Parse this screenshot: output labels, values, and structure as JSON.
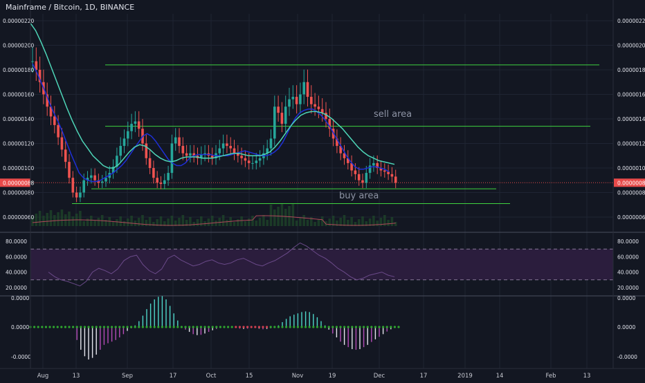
{
  "header": {
    "symbol_line": "Mainframe / Bitcoin, 1D, BINANCE"
  },
  "colors": {
    "background": "#131722",
    "grid": "#1f2433",
    "pane_divider": "#4a4f5e",
    "up_candle": "#26a69a",
    "down_candle": "#ef5350",
    "ema_fast": "#1e2fd6",
    "ema_slow": "#4ed6b8",
    "levels": "#3fd43f",
    "last_price_badge": "#e84a4a",
    "rsi_line": "#6b4a8a",
    "rsi_band": "#2b1d3d",
    "volume": "#1f4a2a",
    "volume_ma": "#b04a5a",
    "macd_pos": "#4ed6c8",
    "macd_neg_light": "#e6e6ee",
    "macd_neg_magenta": "#b54bb8",
    "macd_zero_dots": "#2fa62f",
    "axis_text": "#e1e3eb",
    "annotation_text": "#8e94a5"
  },
  "chart_data": {
    "type": "candlestick",
    "title": "Mainframe / Bitcoin, 1D, BINANCE",
    "x_tick_labels": [
      "Aug",
      "13",
      "Sep",
      "17",
      "Oct",
      "15",
      "Nov",
      "19",
      "Dec",
      "17",
      "2019",
      "14",
      "Feb",
      "13"
    ],
    "price_axis": {
      "ylim": [
        5e-07,
        2.3e-07
      ],
      "tick_labels": [
        "0.00000220",
        "0.00000200",
        "0.00000180",
        "0.00000160",
        "0.00000140",
        "0.00000120",
        "0.00000100",
        "0.00000080",
        "0.00000060"
      ],
      "last_price": "0.00000088"
    },
    "candles_close": [
      1.87e-06,
      1.8e-06,
      1.7e-06,
      1.6e-06,
      1.5e-06,
      1.42e-06,
      1.35e-06,
      1.25e-06,
      1.15e-06,
      1.05e-06,
      9.2e-07,
      8e-07,
      7.6e-07,
      8e-07,
      9e-07,
      9.2e-07,
      9.4e-07,
      9e-07,
      8.8e-07,
      8.9e-07,
      9.2e-07,
      9.6e-07,
      1.01e-06,
      1.1e-06,
      1.18e-06,
      1.24e-06,
      1.3e-06,
      1.36e-06,
      1.38e-06,
      1.32e-06,
      1.2e-06,
      1.08e-06,
      1e-06,
      9.2e-07,
      8.8e-07,
      8.7e-07,
      9e-07,
      9.6e-07,
      1.2e-06,
      1.25e-06,
      1.18e-06,
      1.12e-06,
      1.1e-06,
      1.12e-06,
      1.1e-06,
      1.08e-06,
      1.11e-06,
      1.12e-06,
      1.1e-06,
      1.08e-06,
      1.12e-06,
      1.16e-06,
      1.2e-06,
      1.18e-06,
      1.16e-06,
      1.12e-06,
      1.1e-06,
      1.08e-06,
      1.06e-06,
      1.04e-06,
      1.04e-06,
      1.06e-06,
      1.08e-06,
      1.12e-06,
      1.16e-06,
      1.24e-06,
      1.5e-06,
      1.45e-06,
      1.36e-06,
      1.5e-06,
      1.56e-06,
      1.58e-06,
      1.52e-06,
      1.6e-06,
      1.7e-06,
      1.58e-06,
      1.52e-06,
      1.5e-06,
      1.48e-06,
      1.45e-06,
      1.4e-06,
      1.32e-06,
      1.24e-06,
      1.18e-06,
      1.12e-06,
      1.08e-06,
      1.04e-06,
      9.8e-07,
      9.5e-07,
      9e-07,
      8.8e-07,
      9.6e-07,
      1.02e-06,
      1.04e-06,
      1e-06,
      9.8e-07,
      9.7e-07,
      9.5e-07,
      9.3e-07,
      8.8e-07
    ],
    "ema_fast": [
      1.85e-06,
      1.78e-06,
      1.7e-06,
      1.62e-06,
      1.53e-06,
      1.45e-06,
      1.38e-06,
      1.3e-06,
      1.21e-06,
      1.12e-06,
      1.04e-06,
      9.6e-07,
      9.2e-07,
      9e-07,
      8.9e-07,
      8.9e-07,
      9e-07,
      9.2e-07,
      9.4e-07,
      9.6e-07,
      9.9e-07,
      1.02e-06,
      1.06e-06,
      1.11e-06,
      1.16e-06,
      1.21e-06,
      1.26e-06,
      1.28e-06,
      1.26e-06,
      1.22e-06,
      1.17e-06,
      1.12e-06,
      1.07e-06,
      1.04e-06,
      1.02e-06,
      1.02e-06,
      1.04e-06,
      1.08e-06,
      1.1e-06,
      1.11e-06,
      1.11e-06,
      1.11e-06,
      1.11e-06,
      1.1e-06,
      1.1e-06,
      1.1e-06,
      1.1e-06,
      1.11e-06,
      1.12e-06,
      1.13e-06,
      1.14e-06,
      1.13e-06,
      1.12e-06,
      1.11e-06,
      1.1e-06,
      1.1e-06,
      1.11e-06,
      1.13e-06,
      1.16e-06,
      1.21e-06,
      1.28e-06,
      1.35e-06,
      1.41e-06,
      1.45e-06,
      1.47e-06,
      1.48e-06,
      1.48e-06,
      1.46e-06,
      1.43e-06,
      1.39e-06,
      1.34e-06,
      1.28e-06,
      1.22e-06,
      1.16e-06,
      1.1e-06,
      1.05e-06,
      1.01e-06,
      9.9e-07,
      9.9e-07,
      1e-06,
      1.01e-06,
      1.01e-06,
      1e-06,
      9.9e-07,
      9.7e-07
    ],
    "ema_slow": [
      2.18e-06,
      2.12e-06,
      2.03e-06,
      1.93e-06,
      1.82e-06,
      1.71e-06,
      1.6e-06,
      1.49e-06,
      1.39e-06,
      1.3e-06,
      1.22e-06,
      1.16e-06,
      1.1e-06,
      1.06e-06,
      1.02e-06,
      1e-06,
      1e-06,
      1.03e-06,
      1.08e-06,
      1.13e-06,
      1.17e-06,
      1.19e-06,
      1.18e-06,
      1.15e-06,
      1.11e-06,
      1.08e-06,
      1.06e-06,
      1.05e-06,
      1.06e-06,
      1.08e-06,
      1.09e-06,
      1.09e-06,
      1.09e-06,
      1.08e-06,
      1.08e-06,
      1.08e-06,
      1.09e-06,
      1.1e-06,
      1.11e-06,
      1.12e-06,
      1.12e-06,
      1.11e-06,
      1.1e-06,
      1.1e-06,
      1.1e-06,
      1.11e-06,
      1.13e-06,
      1.17e-06,
      1.22e-06,
      1.28e-06,
      1.34e-06,
      1.39e-06,
      1.43e-06,
      1.45e-06,
      1.46e-06,
      1.46e-06,
      1.45e-06,
      1.43e-06,
      1.4e-06,
      1.36e-06,
      1.32e-06,
      1.27e-06,
      1.22e-06,
      1.17e-06,
      1.13e-06,
      1.1e-06,
      1.08e-06,
      1.06e-06,
      1.05e-06,
      1.04e-06,
      1.03e-06
    ],
    "levels": [
      {
        "name": "resistance-top",
        "value": 1.84e-06
      },
      {
        "name": "resistance-mid",
        "value": 1.34e-06
      },
      {
        "name": "support-upper",
        "value": 8.3e-07
      },
      {
        "name": "support-lower",
        "value": 7.1e-07
      }
    ],
    "annotations": [
      {
        "text": "sell area"
      },
      {
        "text": "buy area"
      }
    ],
    "rsi": {
      "ylim": [
        10,
        90
      ],
      "tick_labels": [
        "80.0000",
        "60.0000",
        "40.0000",
        "20.0000"
      ],
      "band": [
        30,
        70
      ],
      "values": [
        40,
        34,
        30,
        28,
        25,
        22,
        28,
        40,
        45,
        42,
        38,
        44,
        55,
        60,
        62,
        50,
        42,
        38,
        44,
        58,
        62,
        56,
        52,
        48,
        50,
        54,
        56,
        52,
        50,
        52,
        56,
        58,
        54,
        50,
        48,
        52,
        55,
        60,
        65,
        72,
        78,
        74,
        68,
        62,
        58,
        52,
        45,
        40,
        34,
        30,
        32,
        36,
        38,
        40,
        36,
        34
      ]
    },
    "macd": {
      "tick_labels": [
        "0.0000",
        "0.0000",
        "-0.0000"
      ],
      "histogram": [
        0,
        0,
        0,
        0,
        0,
        0,
        0,
        0,
        0,
        0,
        0,
        0,
        -0.4,
        -0.7,
        -0.9,
        -1.0,
        -0.95,
        -0.85,
        -0.7,
        -0.55,
        -0.5,
        -0.45,
        -0.4,
        -0.32,
        -0.22,
        -0.12,
        -0.04,
        0.05,
        0.18,
        0.35,
        0.55,
        0.72,
        0.85,
        0.93,
        0.95,
        0.85,
        0.65,
        0.42,
        0.2,
        0.02,
        -0.08,
        -0.15,
        -0.22,
        -0.25,
        -0.24,
        -0.2,
        -0.15,
        -0.1,
        -0.06,
        -0.03,
        0,
        0.02,
        0.01,
        -0.02,
        -0.05,
        -0.06,
        -0.05,
        -0.03,
        -0.02,
        -0.05,
        -0.07,
        -0.06,
        -0.04,
        -0.01,
        0.05,
        0.15,
        0.25,
        0.33,
        0.38,
        0.42,
        0.46,
        0.48,
        0.46,
        0.4,
        0.3,
        0.18,
        0.05,
        -0.08,
        -0.2,
        -0.32,
        -0.45,
        -0.55,
        -0.62,
        -0.68,
        -0.7,
        -0.68,
        -0.62,
        -0.55,
        -0.46,
        -0.38,
        -0.3,
        -0.22,
        -0.14,
        -0.07,
        -0.02
      ]
    }
  }
}
